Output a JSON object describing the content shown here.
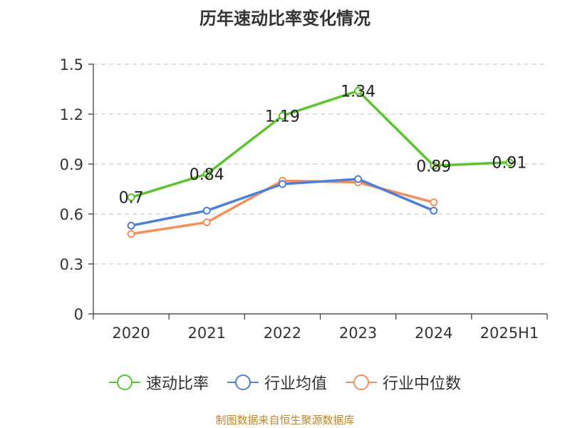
{
  "chart_data": {
    "type": "line",
    "title": "历年速动比率变化情况",
    "categories": [
      "2020",
      "2021",
      "2022",
      "2023",
      "2024",
      "2025H1"
    ],
    "ylim": [
      0,
      1.5
    ],
    "y_ticks": [
      "0",
      "0.3",
      "0.6",
      "0.9",
      "1.2",
      "1.5"
    ],
    "grid": true,
    "legend_position": "bottom",
    "series": [
      {
        "name": "速动比率",
        "color": "#5bc42c",
        "values": [
          0.7,
          0.84,
          1.19,
          1.34,
          0.89,
          0.91
        ],
        "labels": [
          "0.7",
          "0.84",
          "1.19",
          "1.34",
          "0.89",
          "0.91"
        ]
      },
      {
        "name": "行业均值",
        "color": "#4e7fd9",
        "values": [
          0.53,
          0.62,
          0.78,
          0.81,
          0.62,
          null
        ]
      },
      {
        "name": "行业中位数",
        "color": "#f2905c",
        "values": [
          0.48,
          0.55,
          0.8,
          0.79,
          0.67,
          null
        ]
      }
    ]
  },
  "source": "制图数据来自恒生聚源数据库"
}
